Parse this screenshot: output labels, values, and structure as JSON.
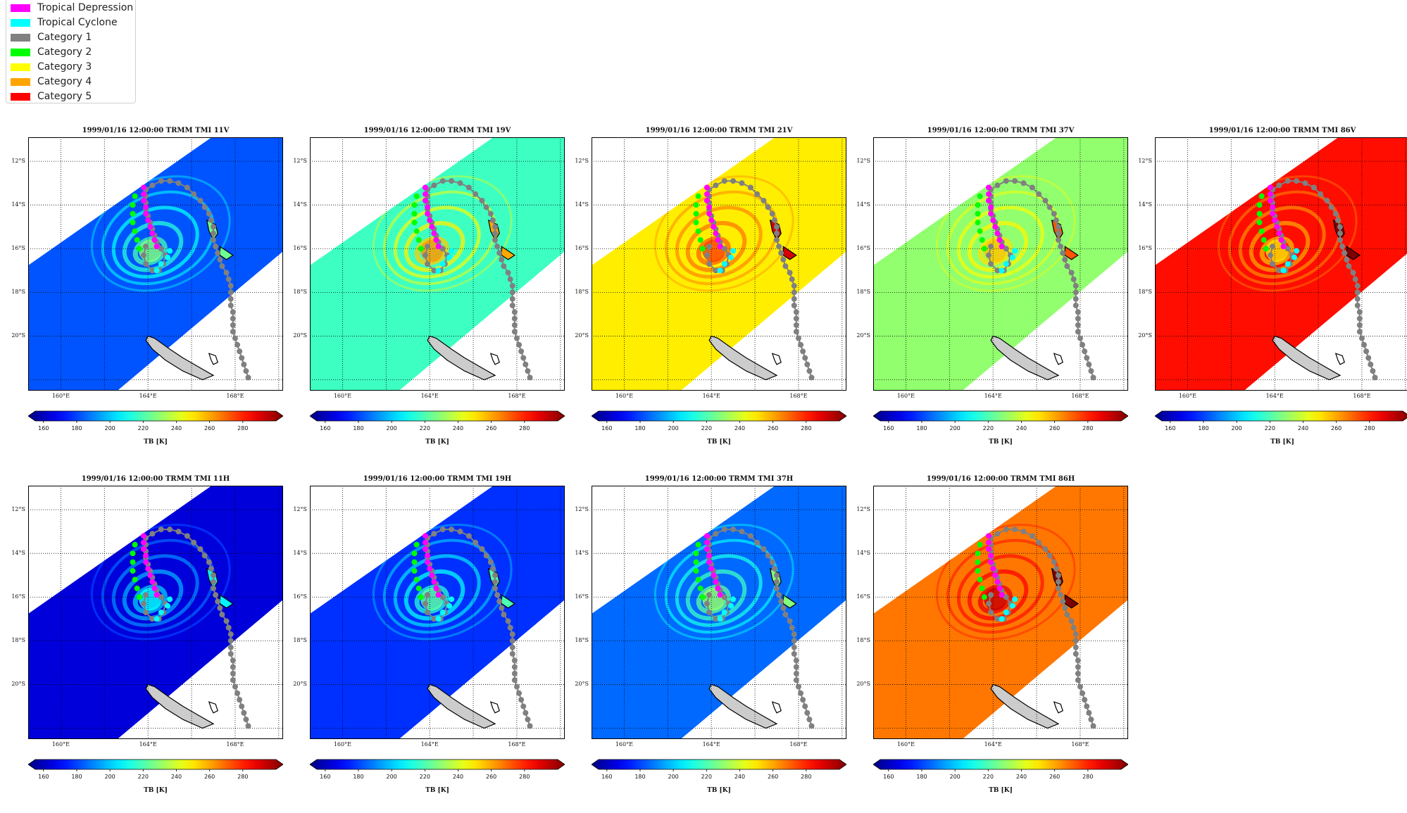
{
  "legend": {
    "items": [
      {
        "label": "Tropical Depression",
        "color": "#ff00ff"
      },
      {
        "label": "Tropical Cyclone",
        "color": "#00ffff"
      },
      {
        "label": "Category 1",
        "color": "#808080"
      },
      {
        "label": "Category 2",
        "color": "#00ff00"
      },
      {
        "label": "Category 3",
        "color": "#ffff00"
      },
      {
        "label": "Category 4",
        "color": "#ffa500"
      },
      {
        "label": "Category 5",
        "color": "#ff0000"
      }
    ]
  },
  "panels": [
    {
      "title": "1999/01/16 12:00:00  TRMM TMI 11V",
      "base_tb": 185
    },
    {
      "title": "1999/01/16 12:00:00  TRMM TMI 19V",
      "base_tb": 218
    },
    {
      "title": "1999/01/16 12:00:00  TRMM TMI 21V",
      "base_tb": 248
    },
    {
      "title": "1999/01/16 12:00:00  TRMM TMI 37V",
      "base_tb": 230
    },
    {
      "title": "1999/01/16 12:00:00  TRMM TMI 86V",
      "base_tb": 280
    },
    {
      "title": "1999/01/16 12:00:00  TRMM TMI 11H",
      "base_tb": 168
    },
    {
      "title": "1999/01/16 12:00:00  TRMM TMI 19H",
      "base_tb": 180
    },
    {
      "title": "1999/01/16 12:00:00  TRMM TMI 37H",
      "base_tb": 188
    },
    {
      "title": "1999/01/16 12:00:00  TRMM TMI 86H",
      "base_tb": 265
    }
  ],
  "map": {
    "lat_labels": [
      "12°S",
      "14°S",
      "16°S",
      "18°S",
      "20°S"
    ],
    "lon_labels": [
      "160°E",
      "164°E",
      "168°E"
    ]
  },
  "colorbar": {
    "ticks": [
      "160",
      "180",
      "200",
      "220",
      "240",
      "260",
      "280"
    ],
    "label": "TB [K]",
    "range": [
      155,
      300
    ]
  }
}
